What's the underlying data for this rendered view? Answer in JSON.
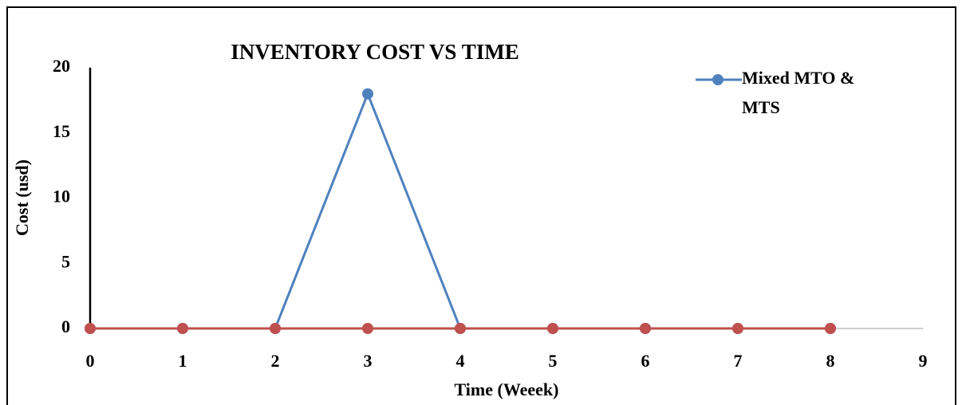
{
  "chart_data": {
    "type": "line",
    "title": "INVENTORY COST VS TIME",
    "x_label": "Time (Weeek)",
    "y_label": "Cost (usd)",
    "x": [
      0,
      1,
      2,
      3,
      4,
      5,
      6,
      7,
      8
    ],
    "series": [
      {
        "name": "Mixed MTO & MTS",
        "color": "#4f81bd",
        "values": [
          0,
          0,
          0,
          18,
          0,
          0,
          0,
          0,
          0
        ]
      },
      {
        "color": "#c0504d",
        "values": [
          0,
          0,
          0,
          0,
          0,
          0,
          0,
          0,
          0
        ]
      }
    ],
    "xlim": [
      0,
      9
    ],
    "xticks": [
      0,
      1,
      2,
      3,
      4,
      5,
      6,
      7,
      8,
      9
    ],
    "ylim": [
      0,
      20
    ],
    "yticks": [
      0,
      5,
      10,
      15,
      20
    ],
    "grid": false,
    "legend": "top-right"
  }
}
